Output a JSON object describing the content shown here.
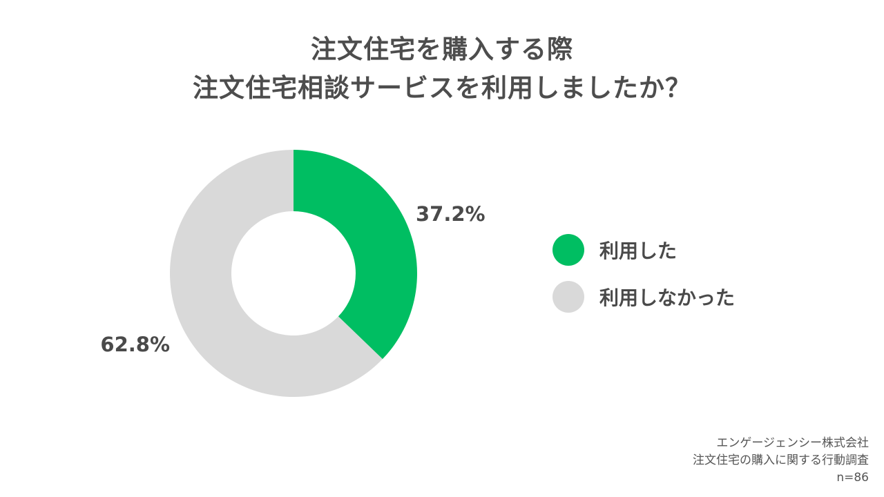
{
  "title": {
    "line1": "注文住宅を購入する際",
    "line2": "注文住宅相談サービスを利用しましたか？"
  },
  "chart_data": {
    "type": "pie",
    "donut": true,
    "categories": [
      "利用した",
      "利用しなかった"
    ],
    "values": [
      37.2,
      62.8
    ],
    "value_labels": [
      "37.2%",
      "62.8%"
    ],
    "colors": [
      "#00BE62",
      "#D9D9D9"
    ],
    "legend_position": "right"
  },
  "legend": {
    "items": [
      {
        "label": "利用した",
        "color": "#00BE62"
      },
      {
        "label": "利用しなかった",
        "color": "#D9D9D9"
      }
    ]
  },
  "footer": {
    "company": "エンゲージェンシー株式会社",
    "survey": "注文住宅の購入に関する行動調査",
    "sample": "n=86"
  }
}
